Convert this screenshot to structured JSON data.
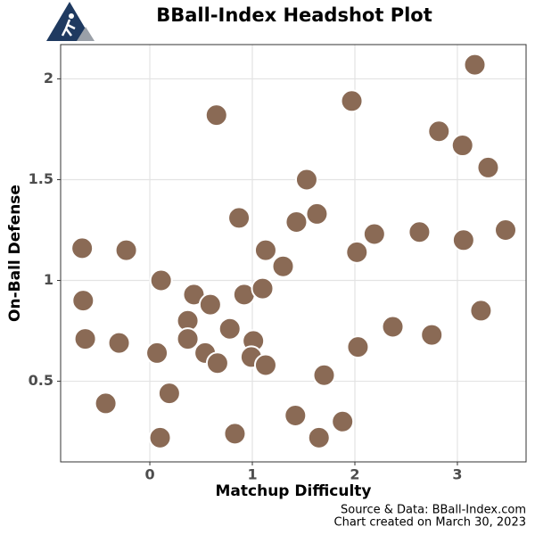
{
  "chart_data": {
    "type": "scatter",
    "title": "BBall-Index Headshot Plot",
    "xlabel": "Matchup Difficulty",
    "ylabel": "On-Ball Defense",
    "caption": [
      "Source & Data: BBall-Index.com",
      "Chart created on March 30, 2023"
    ],
    "xlim": [
      -0.87,
      3.67
    ],
    "ylim": [
      0.1,
      2.17
    ],
    "xticks": [
      0,
      1,
      2,
      3
    ],
    "yticks": [
      0.5,
      1.0,
      1.5,
      2.0
    ],
    "grid": true,
    "color": "#8a6a55",
    "x": [
      3.17,
      1.97,
      0.65,
      2.82,
      3.05,
      3.3,
      1.53,
      1.63,
      1.43,
      0.87,
      2.19,
      2.02,
      2.63,
      3.06,
      3.47,
      -0.66,
      -0.23,
      1.13,
      1.3,
      0.11,
      0.43,
      0.92,
      1.1,
      -0.65,
      0.59,
      0.37,
      3.23,
      2.37,
      -0.63,
      -0.3,
      0.07,
      0.37,
      0.78,
      0.54,
      1.01,
      0.99,
      0.66,
      1.13,
      2.03,
      2.75,
      1.7,
      0.19,
      -0.43,
      1.42,
      1.88,
      0.83,
      0.1,
      1.65
    ],
    "y": [
      2.07,
      1.89,
      1.82,
      1.74,
      1.67,
      1.56,
      1.5,
      1.33,
      1.29,
      1.31,
      1.23,
      1.14,
      1.24,
      1.2,
      1.25,
      1.16,
      1.15,
      1.15,
      1.07,
      1.0,
      0.93,
      0.93,
      0.96,
      0.9,
      0.88,
      0.8,
      0.85,
      0.77,
      0.71,
      0.69,
      0.64,
      0.71,
      0.76,
      0.64,
      0.7,
      0.62,
      0.59,
      0.58,
      0.67,
      0.73,
      0.53,
      0.44,
      0.39,
      0.33,
      0.3,
      0.24,
      0.22,
      0.22
    ]
  }
}
